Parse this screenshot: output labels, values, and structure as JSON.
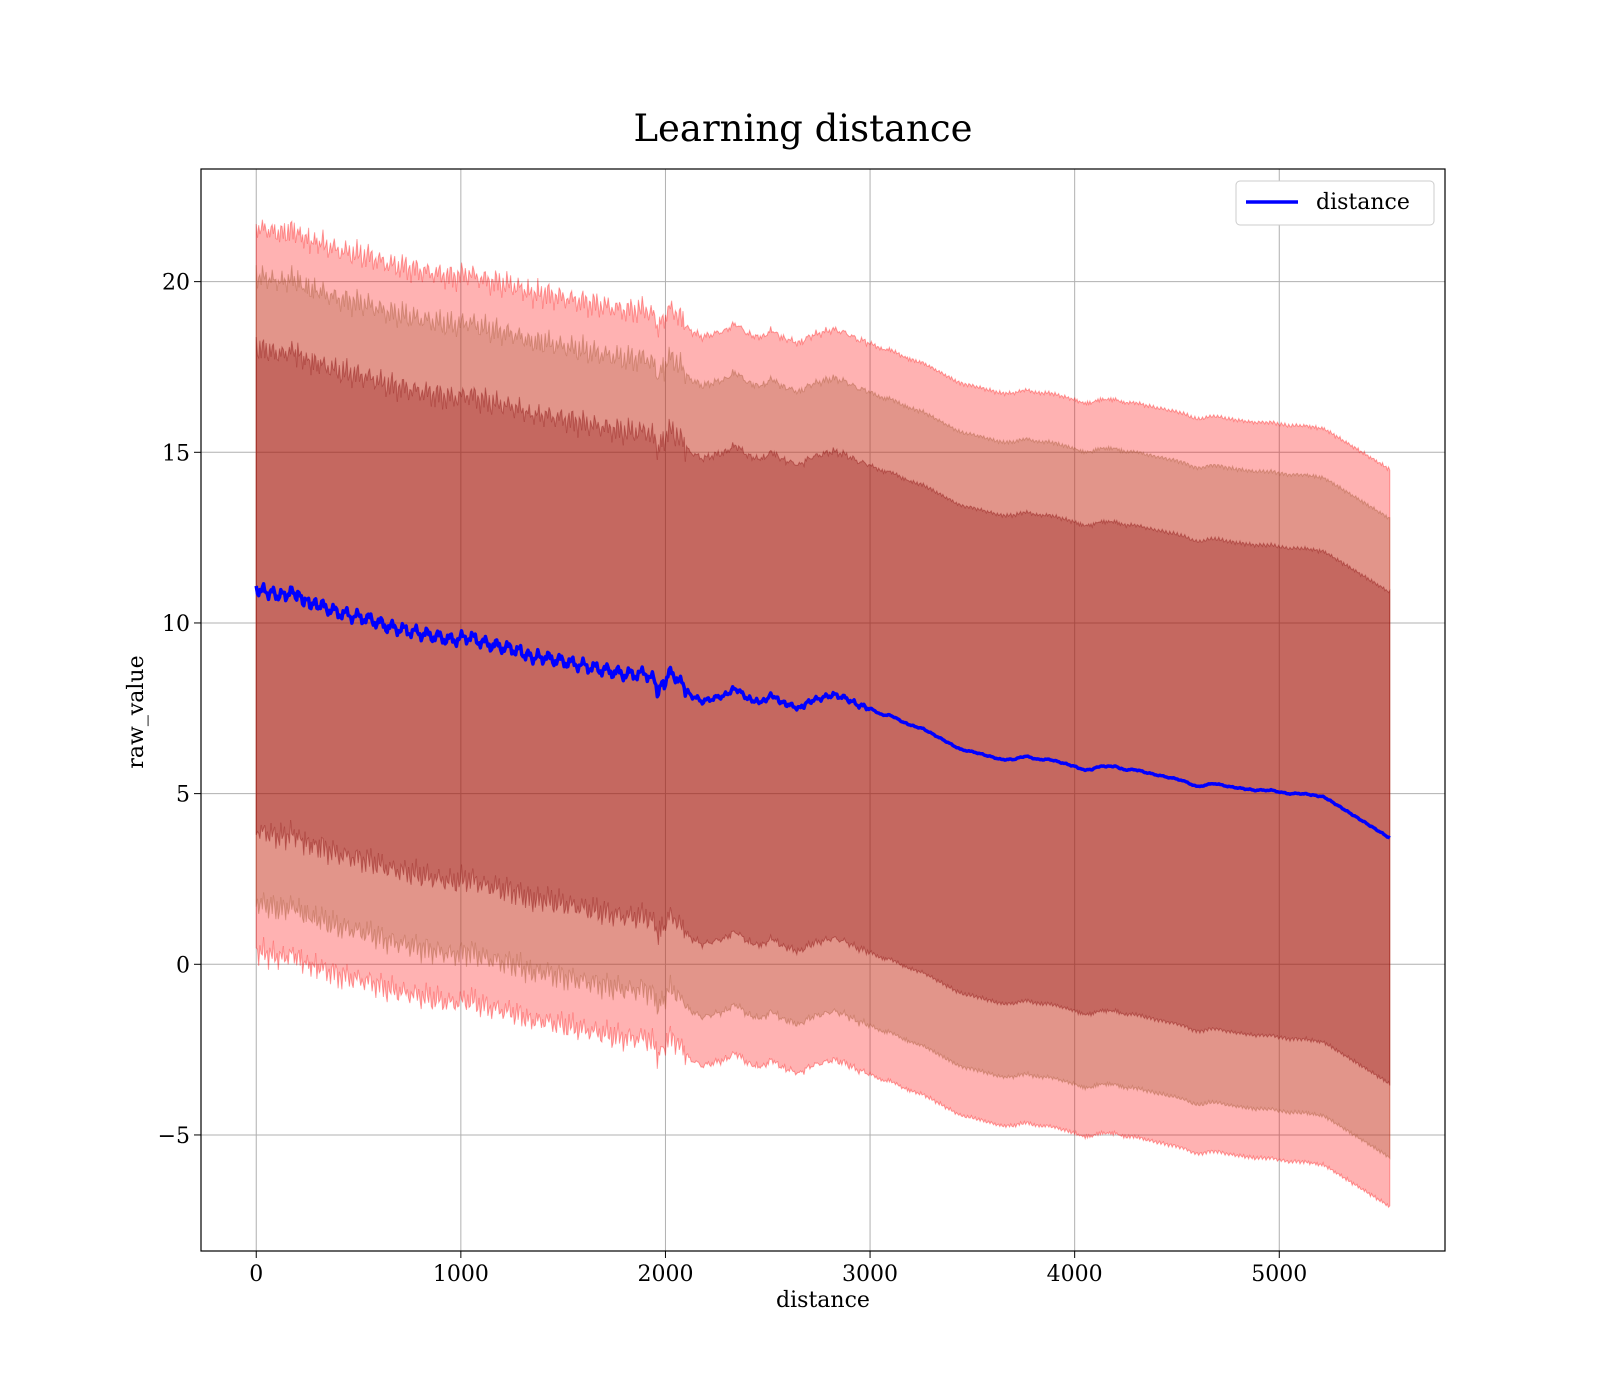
{
  "chart_data": {
    "type": "area",
    "title": "Learning distance",
    "xlabel": "distance",
    "ylabel": "raw_value",
    "xlim": [
      -270,
      5810
    ],
    "ylim": [
      -8.4,
      23.3
    ],
    "xticks": [
      0,
      1000,
      2000,
      3000,
      4000,
      5000
    ],
    "yticks": [
      -5,
      0,
      5,
      10,
      15,
      20
    ],
    "ytick_labels": [
      "−5",
      "0",
      "5",
      "10",
      "15",
      "20"
    ],
    "grid": true,
    "legend": {
      "placement": "top-right",
      "entries": [
        {
          "name": "distance",
          "color": "#0000ff"
        }
      ]
    },
    "colors": {
      "line": "#0000ff",
      "band": "#ff0000",
      "band_inner": "#800000",
      "band_mid": "#a0522d"
    },
    "bands": [
      {
        "sigma": 1.5,
        "opacity": 0.3
      },
      {
        "sigma": 1.3,
        "opacity": 0.3
      },
      {
        "sigma": 1.0,
        "opacity": 0.3
      }
    ],
    "band_halfwidth_at_start": 10.6,
    "band_halfwidth_at_end": 10.8,
    "series": [
      {
        "name": "distance",
        "x": [
          0,
          60,
          120,
          180,
          250,
          320,
          400,
          480,
          560,
          640,
          720,
          800,
          880,
          960,
          1040,
          1120,
          1200,
          1280,
          1340,
          1400,
          1480,
          1560,
          1640,
          1720,
          1800,
          1880,
          1930,
          1960,
          2000,
          2030,
          2080,
          2120,
          2180,
          2240,
          2300,
          2340,
          2400,
          2440,
          2480,
          2520,
          2560,
          2600,
          2660,
          2700,
          2760,
          2820,
          2880,
          2940,
          3000,
          3060,
          3100,
          3160,
          3200,
          3260,
          3320,
          3380,
          3440,
          3520,
          3580,
          3640,
          3700,
          3760,
          3820,
          3880,
          3940,
          4000,
          4040,
          4080,
          4120,
          4160,
          4200,
          4240,
          4300,
          4360,
          4440,
          4520,
          4600,
          4680,
          4760,
          4880,
          4960,
          5040,
          5120,
          5220,
          5380,
          5540
        ],
        "y": [
          11.0,
          10.9,
          10.8,
          10.9,
          10.6,
          10.5,
          10.3,
          10.2,
          10.1,
          9.9,
          9.8,
          9.7,
          9.6,
          9.5,
          9.6,
          9.4,
          9.3,
          9.2,
          9.0,
          9.0,
          8.9,
          8.8,
          8.7,
          8.6,
          8.5,
          8.5,
          8.5,
          8.0,
          8.3,
          8.6,
          8.2,
          7.9,
          7.7,
          7.8,
          7.9,
          8.1,
          7.8,
          7.7,
          7.7,
          7.9,
          7.7,
          7.6,
          7.5,
          7.7,
          7.8,
          7.9,
          7.8,
          7.6,
          7.5,
          7.3,
          7.3,
          7.1,
          7.0,
          6.9,
          6.7,
          6.5,
          6.3,
          6.2,
          6.1,
          6.0,
          6.0,
          6.1,
          6.0,
          6.0,
          5.9,
          5.8,
          5.7,
          5.7,
          5.8,
          5.8,
          5.8,
          5.7,
          5.7,
          5.6,
          5.5,
          5.4,
          5.2,
          5.3,
          5.2,
          5.1,
          5.1,
          5.0,
          5.0,
          4.9,
          4.3,
          3.7
        ]
      }
    ]
  }
}
